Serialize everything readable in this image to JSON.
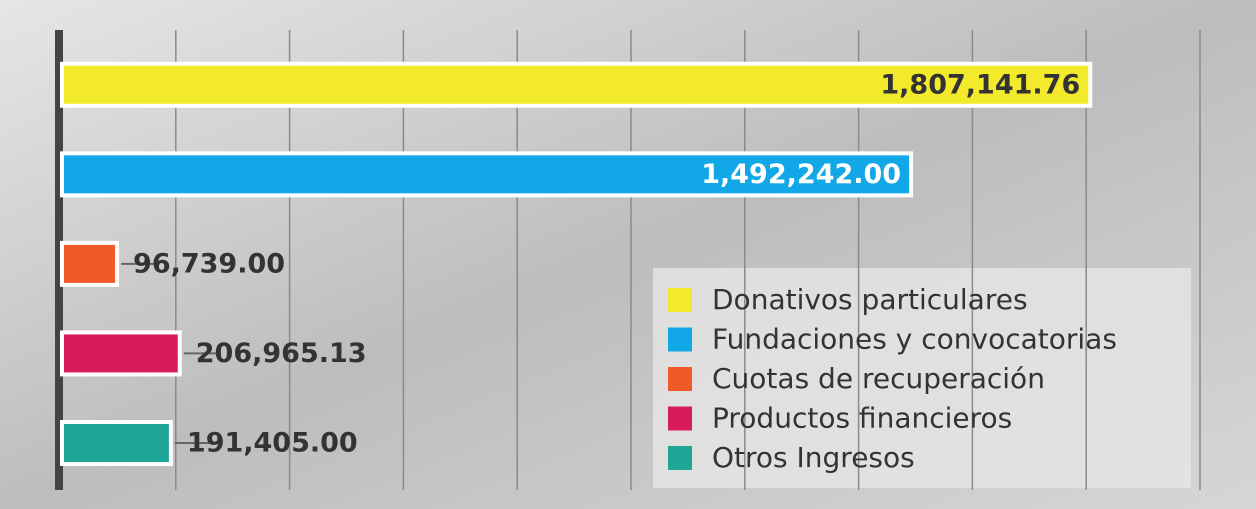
{
  "chart_data": {
    "type": "bar",
    "orientation": "horizontal",
    "categories": [
      "Donativos particulares",
      "Fundaciones y convocatorias",
      "Cuotas de recuperación",
      "Productos financieros",
      "Otros Ingresos"
    ],
    "values": [
      1807141.76,
      1492242.0,
      96739.0,
      206965.13,
      191405.0
    ],
    "value_labels": [
      "1,807,141.76",
      "1,492,242.00",
      "96,739.00",
      "206,965.13",
      "191,405.00"
    ],
    "colors": [
      "#f2ea2a",
      "#12a7e6",
      "#f05a28",
      "#d81b5a",
      "#1ea596"
    ],
    "xlim": [
      0,
      2000000
    ],
    "xticks": [
      0,
      200000,
      400000,
      600000,
      800000,
      1000000,
      1200000,
      1400000,
      1600000,
      1800000,
      2000000
    ],
    "grid": true,
    "legend": "lower right"
  }
}
